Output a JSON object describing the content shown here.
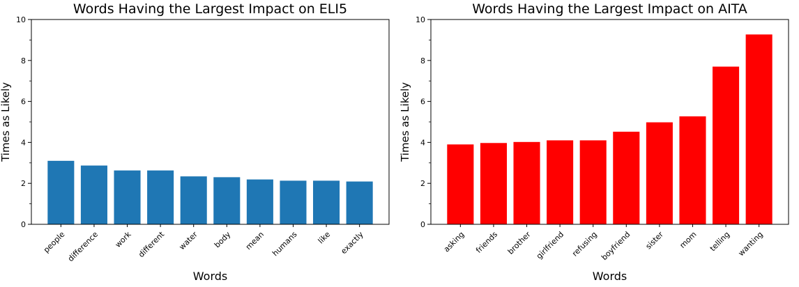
{
  "page": {
    "background": "#ffffff",
    "text_color": "#000000"
  },
  "chart_data": [
    {
      "type": "bar",
      "title": "Words Having the Largest Impact on ELI5",
      "xlabel": "Words",
      "ylabel": "Times as Likely",
      "ylim": [
        0,
        10
      ],
      "yticks_major": [
        0,
        2,
        4,
        6,
        8,
        10
      ],
      "yticks_minor": [
        1,
        3,
        5,
        7,
        9
      ],
      "grid": false,
      "legend": null,
      "bar_color": "#1f77b4",
      "axis_color": "#000000",
      "tick_label_rotation_deg": 45,
      "categories": [
        "people",
        "difference",
        "work",
        "different",
        "water",
        "body",
        "mean",
        "humans",
        "like",
        "exactly"
      ],
      "values": [
        3.1,
        2.87,
        2.63,
        2.63,
        2.34,
        2.3,
        2.19,
        2.13,
        2.13,
        2.09
      ]
    },
    {
      "type": "bar",
      "title": "Words Having the Largest Impact on AITA",
      "xlabel": "Words",
      "ylabel": "Times as Likely",
      "ylim": [
        0,
        10
      ],
      "yticks_major": [
        0,
        2,
        4,
        6,
        8,
        10
      ],
      "yticks_minor": [
        1,
        3,
        5,
        7,
        9
      ],
      "grid": false,
      "legend": null,
      "bar_color": "#ff0000",
      "axis_color": "#000000",
      "tick_label_rotation_deg": 45,
      "categories": [
        "asking",
        "friends",
        "brother",
        "girlfriend",
        "refusing",
        "boyfriend",
        "sister",
        "mom",
        "telling",
        "wanting"
      ],
      "values": [
        3.9,
        3.97,
        4.02,
        4.1,
        4.1,
        4.52,
        4.98,
        5.27,
        7.7,
        9.27
      ]
    }
  ]
}
